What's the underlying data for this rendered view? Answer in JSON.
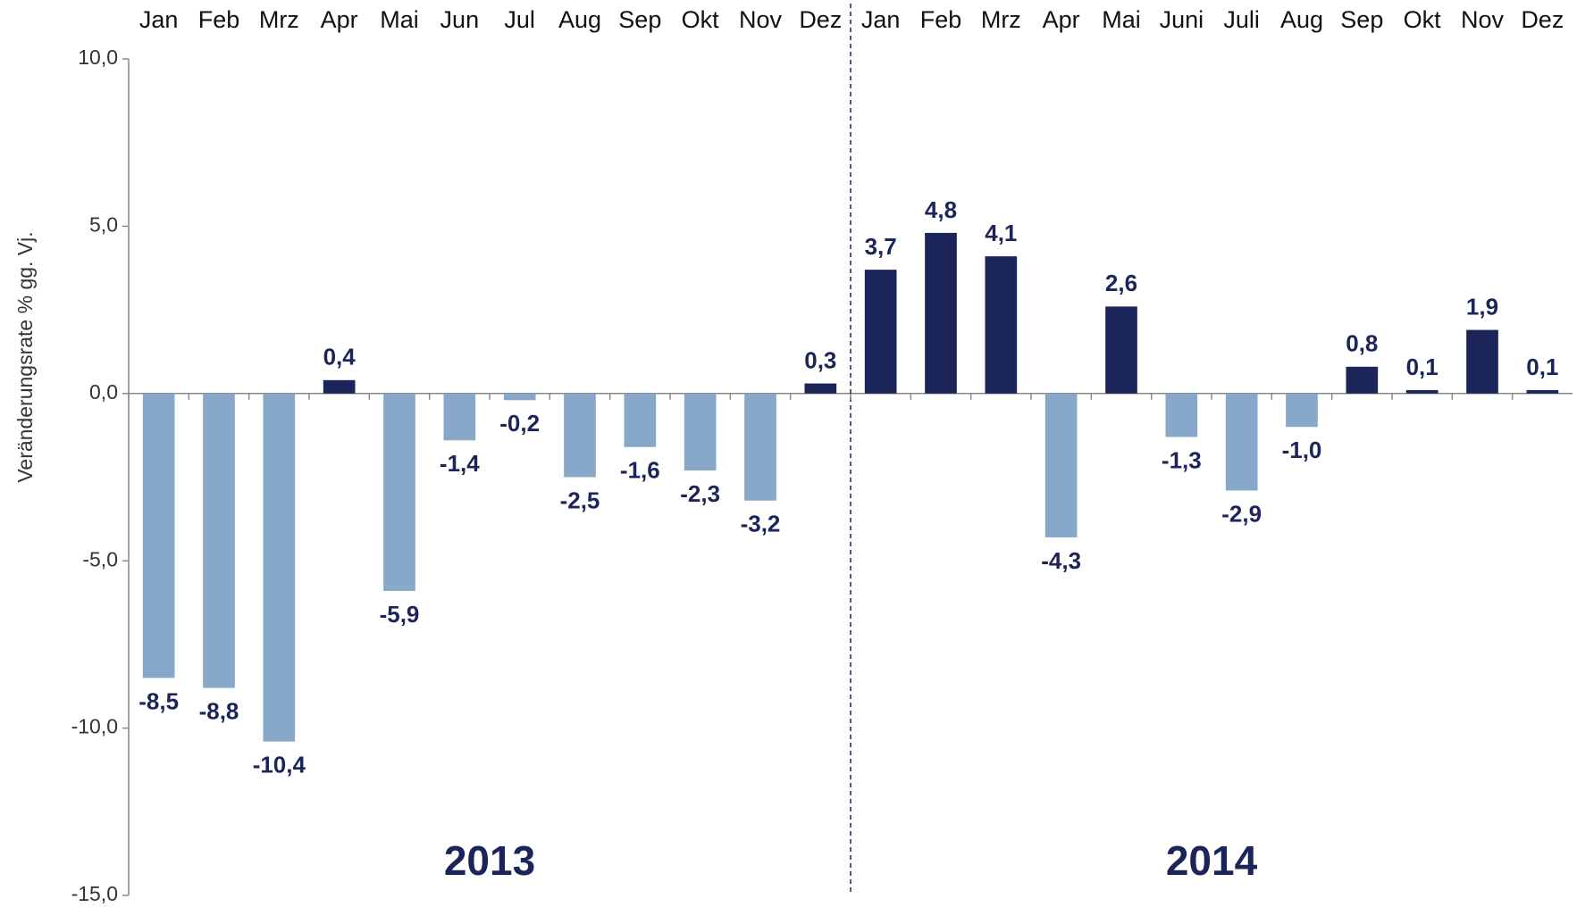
{
  "chart_data": {
    "type": "bar",
    "y_axis_label": "Veränderungsrate % gg. Vj.",
    "categories": [
      "Jan",
      "Feb",
      "Mrz",
      "Apr",
      "Mai",
      "Jun",
      "Jul",
      "Aug",
      "Sep",
      "Okt",
      "Nov",
      "Dez",
      "Jan",
      "Feb",
      "Mrz",
      "Apr",
      "Mai",
      "Juni",
      "Juli",
      "Aug",
      "Sep",
      "Okt",
      "Nov",
      "Dez"
    ],
    "group_labels": [
      "2013",
      "2014"
    ],
    "values": [
      -8.5,
      -8.8,
      -10.4,
      0.4,
      -5.9,
      -1.4,
      -0.2,
      -2.5,
      -1.6,
      -2.3,
      -3.2,
      0.3,
      3.7,
      4.8,
      4.1,
      -4.3,
      2.6,
      -1.3,
      -2.9,
      -1.0,
      0.8,
      0.1,
      1.9,
      0.1
    ],
    "value_labels": [
      "-8,5",
      "-8,8",
      "-10,4",
      "0,4",
      "-5,9",
      "-1,4",
      "-0,2",
      "-2,5",
      "-1,6",
      "-2,3",
      "-3,2",
      "0,3",
      "3,7",
      "4,8",
      "4,1",
      "-4,3",
      "2,6",
      "-1,3",
      "-2,9",
      "-1,0",
      "0,8",
      "0,1",
      "1,9",
      "0,1"
    ],
    "positive_color": "#1b2559",
    "negative_color": "#88a8ca",
    "ylim": [
      -15,
      10
    ],
    "yticks": [
      {
        "value": -15,
        "label": "-15,0"
      },
      {
        "value": -10,
        "label": "-10,0"
      },
      {
        "value": -5,
        "label": "-5,0"
      },
      {
        "value": 0,
        "label": "0,0"
      },
      {
        "value": 5,
        "label": "5,0"
      },
      {
        "value": 10,
        "label": "10,0"
      }
    ],
    "grid": false
  }
}
